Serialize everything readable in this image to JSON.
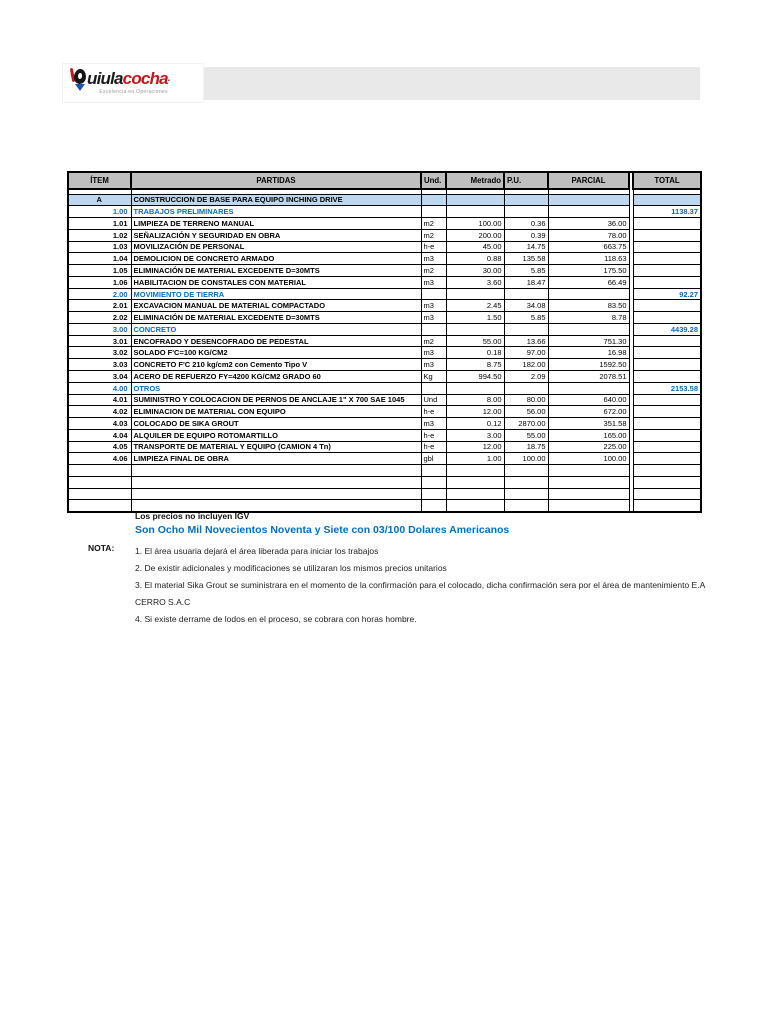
{
  "logo": {
    "wordmark_black": "uiula",
    "wordmark_red": "cocha",
    "tagline": "Excelencia en Operaciones"
  },
  "colors": {
    "accent_blue": "#0070C0",
    "header_gray": "#BFBFBF",
    "group_row_blue": "#BDD7EE",
    "brand_red": "#C4161C",
    "banner_gray": "#E9E9E9"
  },
  "table": {
    "columns": [
      "ÍTEM",
      "PARTIDAS",
      "Und.",
      "Metrado",
      "P.U.",
      "PARCIAL",
      "TOTAL"
    ],
    "empty_row_count": 4,
    "rows": [
      {
        "type": "group",
        "item": "A",
        "partida": "CONSTRUCCION DE BASE PARA EQUIPO INCHING DRIVE"
      },
      {
        "type": "section",
        "item": "1.00",
        "partida": "TRABAJOS PRELIMINARES",
        "total": "1138.37"
      },
      {
        "type": "data",
        "item": "1.01",
        "partida": "LIMPIEZA DE TERRENO MANUAL",
        "und": "m2",
        "metrado": "100.00",
        "pu": "0.36",
        "parcial": "36.00"
      },
      {
        "type": "data",
        "item": "1.02",
        "partida": "SEÑALIZACIÓN Y SEGURIDAD EN OBRA",
        "und": "m2",
        "metrado": "200.00",
        "pu": "0.39",
        "parcial": "78.00"
      },
      {
        "type": "data",
        "item": "1.03",
        "partida": "MOVILIZACIÓN DE PERSONAL",
        "und": "h-e",
        "metrado": "45.00",
        "pu": "14.75",
        "parcial": "663.75"
      },
      {
        "type": "data",
        "item": "1.04",
        "partida": "DEMOLICION DE CONCRETO ARMADO",
        "und": "m3",
        "metrado": "0.88",
        "pu": "135.58",
        "parcial": "118.63"
      },
      {
        "type": "data",
        "item": "1.05",
        "partida": "ELIMINACIÓN DE MATERIAL EXCEDENTE D=30MTS",
        "und": "m2",
        "metrado": "30.00",
        "pu": "5.85",
        "parcial": "175.50"
      },
      {
        "type": "data",
        "item": "1.06",
        "partida": "HABILITACION DE CONSTALES CON MATERIAL",
        "und": "m3",
        "metrado": "3.60",
        "pu": "18.47",
        "parcial": "66.49"
      },
      {
        "type": "section",
        "item": "2.00",
        "partida": "MOVIMIENTO DE TIERRA",
        "total": "92.27"
      },
      {
        "type": "data",
        "item": "2.01",
        "partida": "EXCAVACION MANUAL DE MATERIAL COMPACTADO",
        "und": "m3",
        "metrado": "2.45",
        "pu": "34.08",
        "parcial": "83.50"
      },
      {
        "type": "data",
        "item": "2.02",
        "partida": "ELIMINACIÓN DE MATERIAL EXCEDENTE D=30MTS",
        "und": "m3",
        "metrado": "1.50",
        "pu": "5.85",
        "parcial": "8.78"
      },
      {
        "type": "section",
        "item": "3.00",
        "partida": "CONCRETO",
        "total": "4439.28"
      },
      {
        "type": "data",
        "item": "3.01",
        "partida": "ENCOFRADO Y DESENCOFRADO DE PEDESTAL",
        "und": "m2",
        "metrado": "55.00",
        "pu": "13.66",
        "parcial": "751.30"
      },
      {
        "type": "data",
        "item": "3.02",
        "partida": "SOLADO F'C=100 KG/CM2",
        "und": "m3",
        "metrado": "0.18",
        "pu": "97.00",
        "parcial": "16.98"
      },
      {
        "type": "data",
        "item": "3.03",
        "partida": "CONCRETO F'C 210 kg/cm2 con Cemento Tipo V",
        "und": "m3",
        "metrado": "8.75",
        "pu": "182.00",
        "parcial": "1592.50"
      },
      {
        "type": "data",
        "item": "3.04",
        "partida": "ACERO DE REFUERZO FY=4200 KG/CM2 GRADO 60",
        "und": "Kg",
        "metrado": "994.50",
        "pu": "2.09",
        "parcial": "2078.51"
      },
      {
        "type": "section",
        "item": "4.00",
        "partida": "OTROS",
        "total": "2153.58"
      },
      {
        "type": "data",
        "item": "4.01",
        "partida": "SUMINISTRO Y COLOCACION DE PERNOS DE ANCLAJE 1\" X 700 SAE 1045",
        "und": "Und",
        "metrado": "8.00",
        "pu": "80.00",
        "parcial": "640.00"
      },
      {
        "type": "data",
        "item": "4.02",
        "partida": "ELIMINACION DE MATERIAL CON EQUIPO",
        "und": "h-e",
        "metrado": "12.00",
        "pu": "56.00",
        "parcial": "672.00"
      },
      {
        "type": "data",
        "item": "4.03",
        "partida": "COLOCADO DE SIKA GROUT",
        "und": "m3",
        "metrado": "0.12",
        "pu": "2870.00",
        "parcial": "351.58"
      },
      {
        "type": "data",
        "item": "4.04",
        "partida": "ALQUILER DE EQUIPO ROTOMARTILLO",
        "und": "h-e",
        "metrado": "3.00",
        "pu": "55.00",
        "parcial": "165.00"
      },
      {
        "type": "data",
        "item": "4.05",
        "partida": "TRANSPORTE DE MATERIAL Y EQUIPO (CAMION 4 Tn)",
        "und": "h-e",
        "metrado": "12.00",
        "pu": "18.75",
        "parcial": "225.00"
      },
      {
        "type": "data",
        "item": "4.06",
        "partida": "LIMPIEZA FINAL DE OBRA",
        "und": "gbl",
        "metrado": "1.00",
        "pu": "100.00",
        "parcial": "100.00"
      }
    ]
  },
  "footer": {
    "no_igv": "Los precios no incluyen IGV",
    "amount_words": "Son Ocho Mil Novecientos Noventa y Siete con 03/100 Dolares Americanos",
    "nota_label": "NOTA:",
    "notes": [
      "1. El área usuaria dejará el área liberada para iniciar los trabajos",
      "2. De existir adicionales y modificaciones se utilizaran los mismos precios unitarios",
      "3. El material Sika Grout se suministrara en el momento de la confirmación para el colocado, dicha confirmación sera por el área de mantenimiento   E.A CERRO S.A.C",
      "4. Si existe derrame de lodos en el proceso, se cobrara con horas hombre."
    ]
  }
}
